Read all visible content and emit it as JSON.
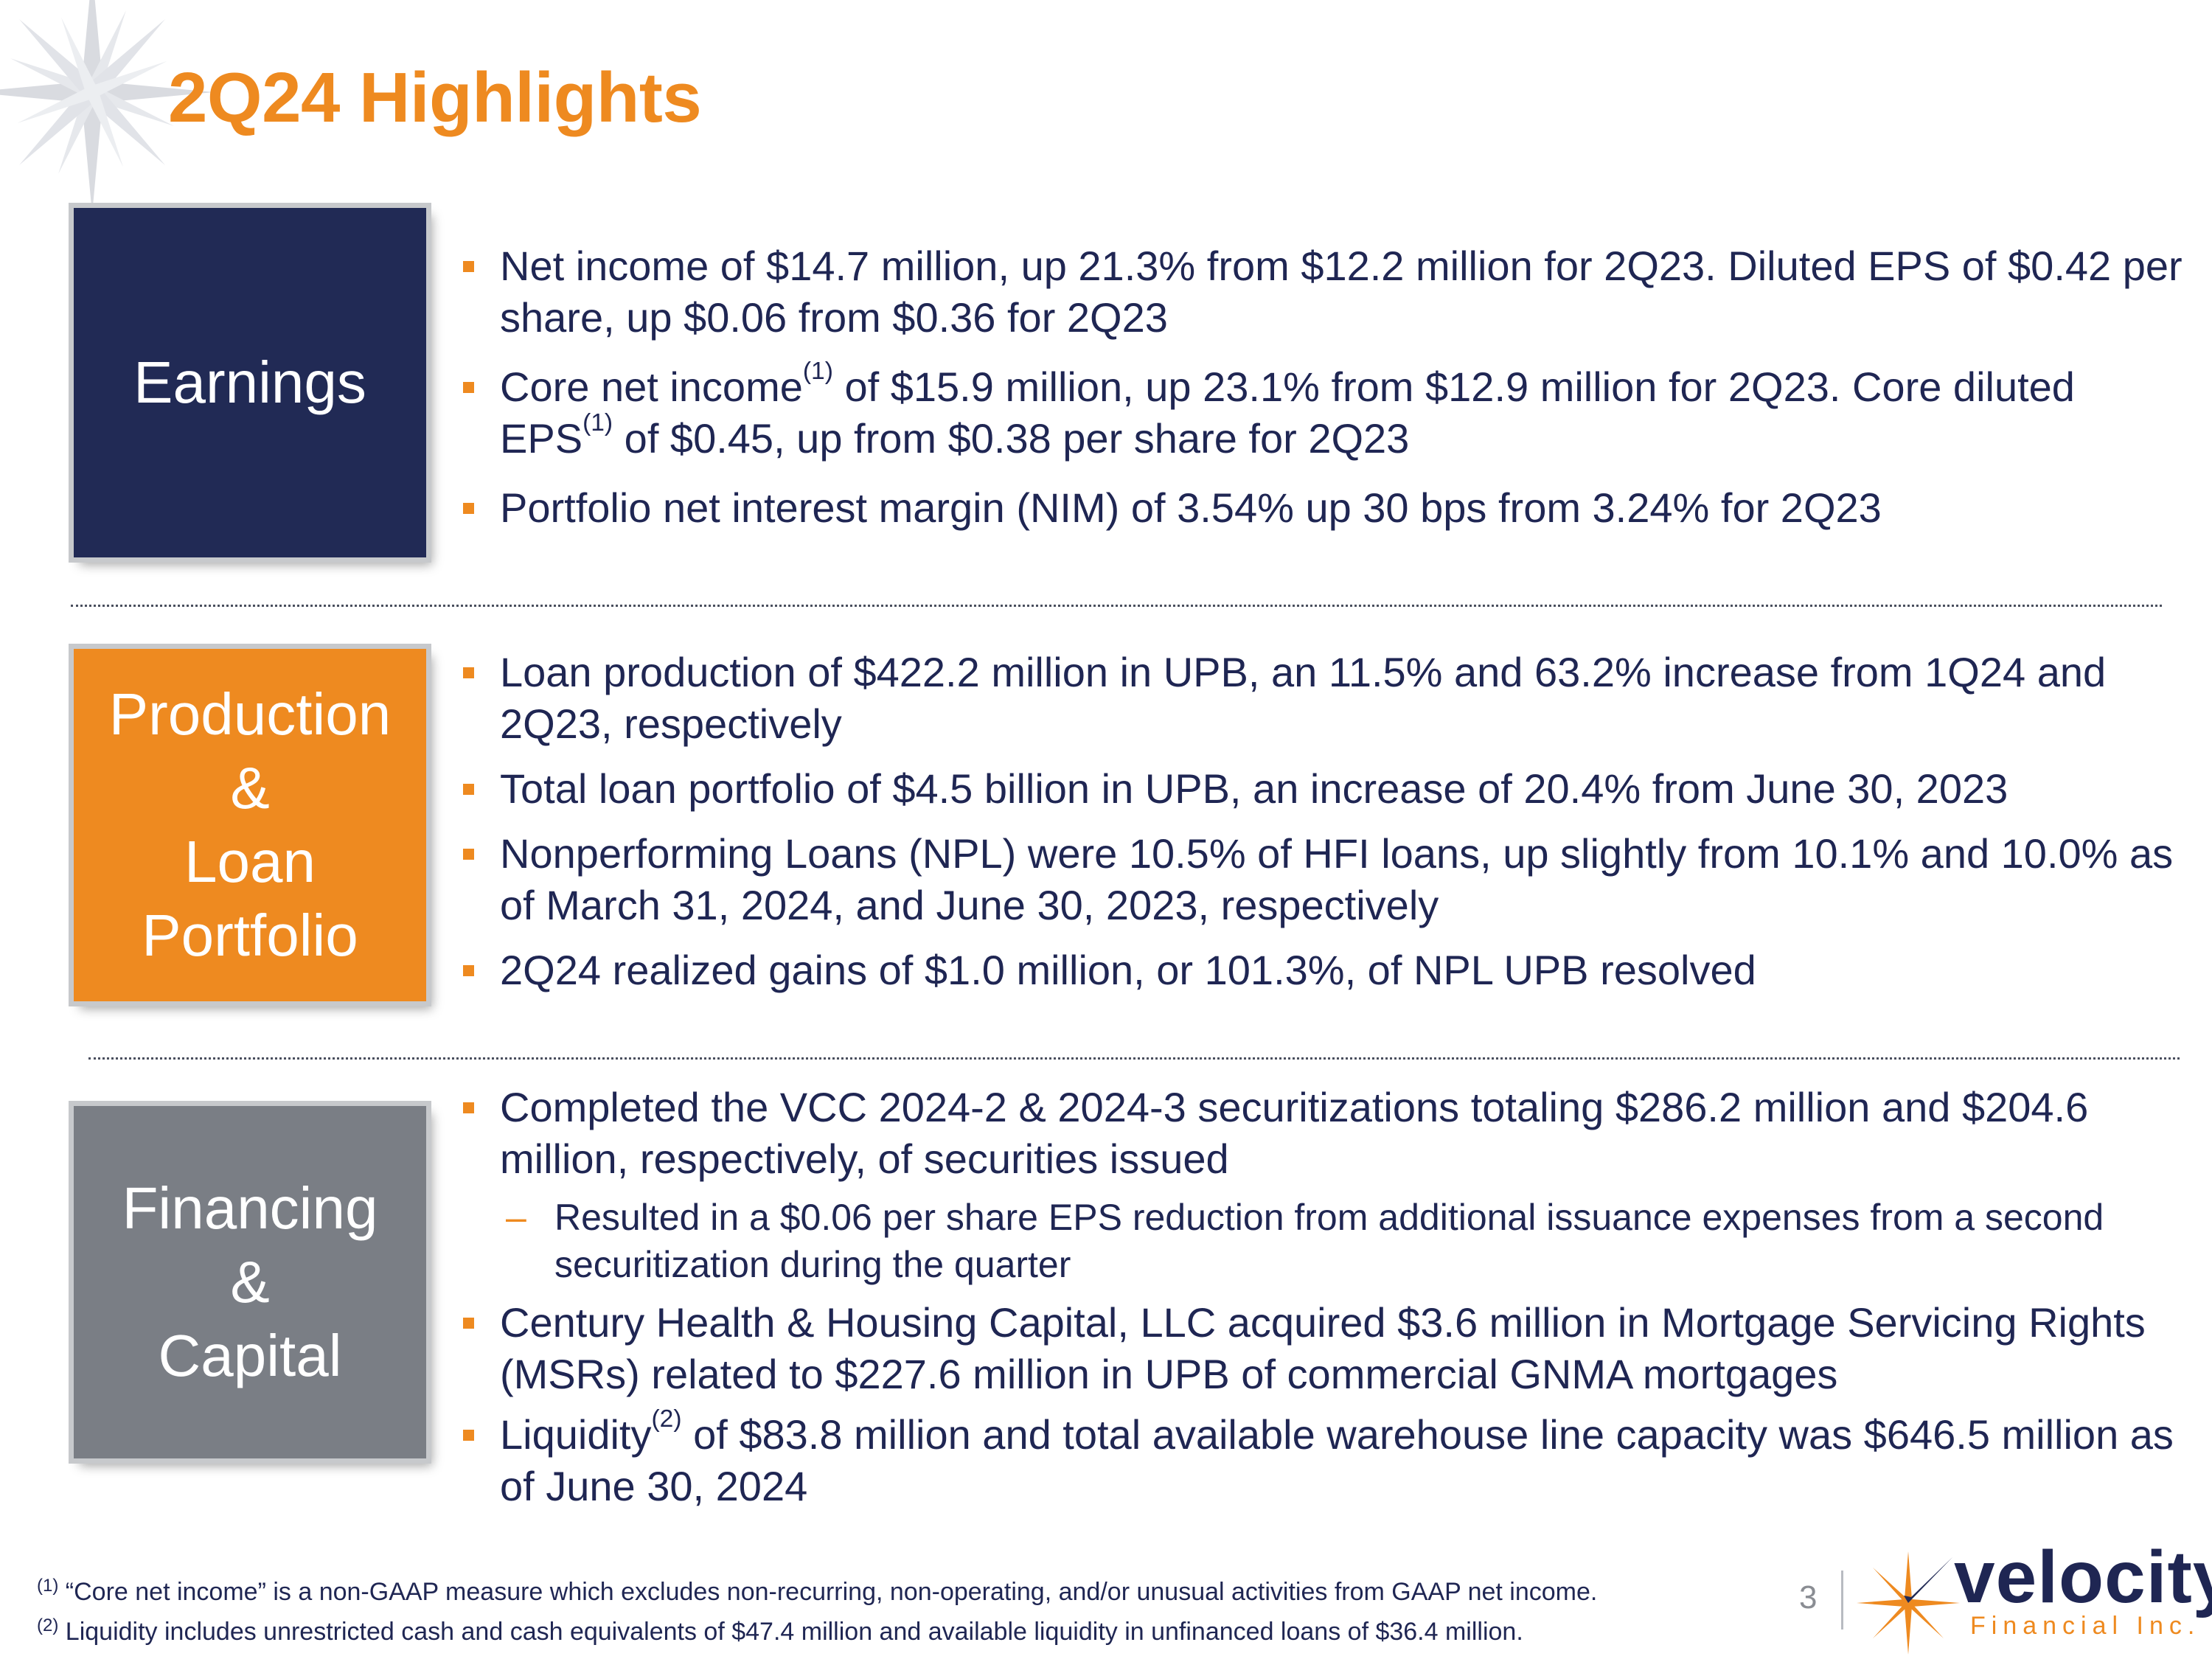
{
  "title": "2Q24 Highlights",
  "sections": [
    {
      "label_lines": [
        "Earnings"
      ],
      "bullets": [
        {
          "segments": [
            "Net income of $14.7 million, up 21.3% from $12.2 million for 2Q23. Diluted EPS of $0.42 per share, up $0.06 from $0.36 for 2Q23"
          ]
        },
        {
          "segments": [
            "Core net income",
            "(1)",
            " of $15.9 million, up 23.1% from $12.9 million for 2Q23. Core diluted EPS",
            "(1)",
            " of $0.45, up from $0.38 per share for 2Q23"
          ]
        },
        {
          "segments": [
            "Portfolio net interest margin (NIM) of 3.54% up 30 bps from 3.24% for 2Q23"
          ]
        }
      ]
    },
    {
      "label_lines": [
        "Production",
        "&",
        "Loan",
        "Portfolio"
      ],
      "bullets": [
        {
          "segments": [
            "Loan production of $422.2 million in UPB, an 11.5% and 63.2% increase from 1Q24 and 2Q23, respectively"
          ]
        },
        {
          "segments": [
            "Total loan portfolio of $4.5 billion in UPB, an increase of 20.4% from June 30, 2023"
          ]
        },
        {
          "segments": [
            "Nonperforming Loans (NPL) were 10.5% of HFI loans, up slightly from 10.1% and 10.0% as of March 31, 2024, and June 30, 2023, respectively"
          ]
        },
        {
          "segments": [
            "2Q24 realized gains of $1.0 million, or 101.3%, of NPL UPB resolved"
          ]
        }
      ]
    },
    {
      "label_lines": [
        "Financing",
        "&",
        "Capital"
      ],
      "bullets": [
        {
          "segments": [
            "Completed the VCC 2024-2 & 2024-3 securitizations totaling $286.2 million and $204.6 million, respectively, of securities issued"
          ]
        },
        {
          "sub_marker": "–",
          "segments": [
            "Resulted in a $0.06 per share EPS reduction from additional issuance expenses from a second securitization during the quarter"
          ]
        },
        {
          "segments": [
            "Century Health & Housing Capital, LLC acquired $3.6 million in Mortgage Servicing Rights (MSRs) related to $227.6 million in UPB of commercial GNMA mortgages"
          ]
        },
        {
          "segments": [
            "Liquidity",
            "(2)",
            " of $83.8 million and total available warehouse line capacity was $646.5 million as of June 30, 2024"
          ]
        }
      ]
    }
  ],
  "footnotes": [
    {
      "marker": "(1)",
      "text": " “Core net income” is a non-GAAP measure which excludes non-recurring, non-operating, and/or unusual activities from GAAP net income."
    },
    {
      "marker": "(2)",
      "text": " Liquidity includes unrestricted cash and cash equivalents of $47.4 million and available liquidity in unfinanced loans of $36.4 million."
    }
  ],
  "page_number": "3",
  "logo": {
    "name": "velocity",
    "tagline": "Financial Inc."
  },
  "colors": {
    "orange": "#ee8a20",
    "navy": "#212a55",
    "gray": "#7a7e85",
    "text": "#1f2653"
  },
  "icons": {
    "decoration": "compass-star-icon",
    "logo_mark": "velocity-star-icon"
  }
}
